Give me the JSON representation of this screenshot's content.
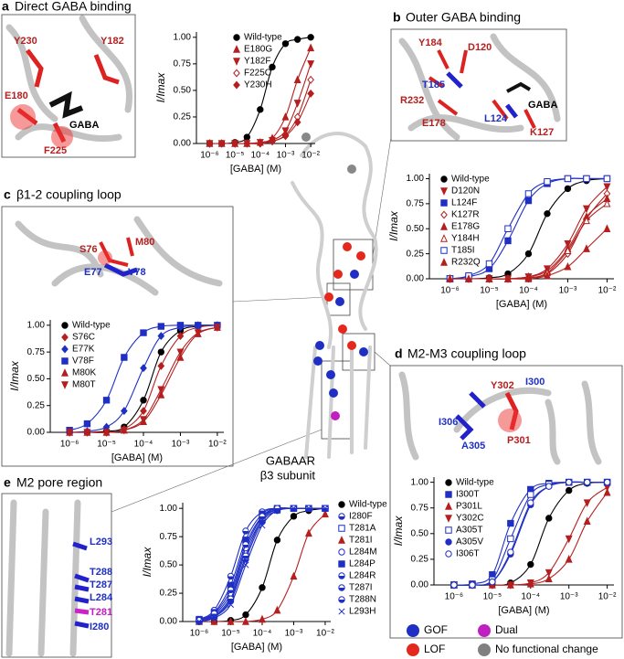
{
  "panels": [
    {
      "letter": "a",
      "title": "Direct GABA binding",
      "residues": [
        "Y230",
        "Y182",
        "E180",
        "GABA",
        "F225"
      ]
    },
    {
      "letter": "b",
      "title": "Outer GABA binding",
      "residues": [
        "Y184",
        "D120",
        "T185",
        "R232",
        "GABA",
        "L124",
        "E178",
        "K127"
      ]
    },
    {
      "letter": "c",
      "title": "β1-2 coupling loop",
      "residues": [
        "S76",
        "M80",
        "E77",
        "V78"
      ]
    },
    {
      "letter": "d",
      "title": "M2-M3 coupling loop",
      "residues": [
        "Y302",
        "I300",
        "I306",
        "A305",
        "P301"
      ]
    },
    {
      "letter": "e",
      "title": "M2 pore region",
      "residues": [
        "L293",
        "T288",
        "T287",
        "L284",
        "T281",
        "I280"
      ]
    }
  ],
  "structure": {
    "name": "GABAAR",
    "subtitle": "β3 subunit"
  },
  "legend": [
    {
      "label": "GOF",
      "color": "#1f2fc4"
    },
    {
      "label": "Dual",
      "color": "#c020c0"
    },
    {
      "label": "LOF",
      "color": "#e5281e"
    },
    {
      "label": "No functional change",
      "color": "#808080"
    }
  ],
  "chart_data": [
    {
      "type": "line",
      "x_label": "[GABA] (M)",
      "y_label": "I/Imax",
      "log_x": true,
      "legend": "upper left",
      "x": [
        1e-06,
        3e-06,
        1e-05,
        3e-05,
        0.0001,
        0.0003,
        0.001,
        0.003,
        0.01
      ],
      "xlim": [
        3e-07,
        0.015
      ],
      "xticks": [
        {
          "value": 1e-06,
          "label": "10⁻⁶"
        },
        {
          "value": 1e-05,
          "label": "10⁻⁵"
        },
        {
          "value": 0.0001,
          "label": "10⁻⁴"
        },
        {
          "value": 0.001,
          "label": "10⁻³"
        },
        {
          "value": 0.01,
          "label": "10⁻²"
        }
      ],
      "ylim": [
        0,
        1.05
      ],
      "yticks": [
        {
          "value": 0,
          "label": "0.00"
        },
        0.25,
        {
          "value": 0.5,
          "label": "0.50"
        },
        0.75,
        {
          "value": 1,
          "label": "1.00"
        }
      ],
      "series": [
        {
          "name": "Wild-type",
          "color": "#000000",
          "marker": "circle",
          "values": [
            0,
            0,
            0.01,
            0.06,
            0.32,
            0.72,
            0.94,
            0.98,
            1.0
          ]
        },
        {
          "name": "E180G",
          "color": "#b51f1f",
          "marker": "triangle",
          "values": [
            0,
            0,
            0,
            0,
            0.01,
            0.05,
            0.25,
            0.6,
            0.9
          ]
        },
        {
          "name": "Y182F",
          "color": "#b51f1f",
          "marker": "triangle-down",
          "values": [
            0,
            0,
            0,
            0,
            0.01,
            0.03,
            0.12,
            0.38,
            0.75
          ]
        },
        {
          "name": "F225C",
          "color": "#b51f1f",
          "marker": "diamond-open",
          "values": [
            0,
            0,
            0,
            0,
            0,
            0.02,
            0.08,
            0.25,
            0.6
          ]
        },
        {
          "name": "Y230H",
          "color": "#b51f1f",
          "marker": "diamond",
          "values": [
            0,
            0,
            0,
            0,
            0,
            0.02,
            0.07,
            0.2,
            0.47
          ]
        }
      ]
    },
    {
      "type": "line",
      "x_label": "[GABA] (M)",
      "y_label": "I/Imax",
      "log_x": true,
      "legend": "upper left",
      "x": [
        1e-06,
        3e-06,
        1e-05,
        3e-05,
        0.0001,
        0.0003,
        0.001,
        0.003,
        0.01
      ],
      "xlim": [
        3e-07,
        0.015
      ],
      "xticks": [
        {
          "value": 1e-06,
          "label": "10⁻⁶"
        },
        {
          "value": 1e-05,
          "label": "10⁻⁵"
        },
        {
          "value": 0.0001,
          "label": "10⁻⁴"
        },
        {
          "value": 0.001,
          "label": "10⁻³"
        },
        {
          "value": 0.01,
          "label": "10⁻²"
        }
      ],
      "ylim": [
        0,
        1.05
      ],
      "yticks": [
        {
          "value": 0,
          "label": "0.00"
        },
        0.25,
        {
          "value": 0.5,
          "label": "0.50"
        },
        0.75,
        {
          "value": 1,
          "label": "1.00"
        }
      ],
      "series": [
        {
          "name": "Wild-type",
          "color": "#000000",
          "marker": "circle",
          "values": [
            0,
            0,
            0.01,
            0.05,
            0.25,
            0.65,
            0.9,
            0.98,
            1.0
          ]
        },
        {
          "name": "D120N",
          "color": "#b51f1f",
          "marker": "triangle-down",
          "values": [
            0,
            0,
            0,
            0,
            0.02,
            0.1,
            0.35,
            0.7,
            0.92
          ]
        },
        {
          "name": "L124F",
          "color": "#1f2fc4",
          "marker": "square",
          "values": [
            0,
            0.02,
            0.1,
            0.38,
            0.78,
            0.95,
            1.0,
            1.0,
            1.0
          ]
        },
        {
          "name": "K127R",
          "color": "#b51f1f",
          "marker": "diamond-open",
          "values": [
            0,
            0,
            0,
            0,
            0.01,
            0.05,
            0.25,
            0.6,
            0.85
          ]
        },
        {
          "name": "E178G",
          "color": "#b51f1f",
          "marker": "triangle",
          "values": [
            0,
            0,
            0,
            0,
            0.02,
            0.08,
            0.3,
            0.62,
            0.8
          ]
        },
        {
          "name": "Y184H",
          "color": "#b51f1f",
          "marker": "triangle-open",
          "values": [
            0,
            0,
            0,
            0,
            0.01,
            0.06,
            0.28,
            0.58,
            0.75
          ]
        },
        {
          "name": "T185I",
          "color": "#1f2fc4",
          "marker": "square-open",
          "values": [
            0,
            0.03,
            0.15,
            0.5,
            0.85,
            0.97,
            1.0,
            1.0,
            1.0
          ]
        },
        {
          "name": "R232Q",
          "color": "#b51f1f",
          "marker": "triangle",
          "values": [
            0,
            0,
            0,
            0,
            0,
            0.03,
            0.12,
            0.3,
            0.5
          ]
        }
      ]
    },
    {
      "type": "line",
      "x_label": "[GABA] (M)",
      "y_label": "I/Imax",
      "log_x": true,
      "legend": "upper left",
      "x": [
        1e-06,
        3e-06,
        1e-05,
        3e-05,
        0.0001,
        0.0003,
        0.001,
        0.003,
        0.01
      ],
      "xlim": [
        3e-07,
        0.015
      ],
      "xticks": [
        {
          "value": 1e-06,
          "label": "10⁻⁶"
        },
        {
          "value": 1e-05,
          "label": "10⁻⁵"
        },
        {
          "value": 0.0001,
          "label": "10⁻⁴"
        },
        {
          "value": 0.001,
          "label": "10⁻³"
        },
        {
          "value": 0.01,
          "label": "10⁻²"
        }
      ],
      "ylim": [
        0,
        1.05
      ],
      "yticks": [
        {
          "value": 0,
          "label": "0.00"
        },
        0.25,
        {
          "value": 0.5,
          "label": "0.50"
        },
        0.75,
        {
          "value": 1,
          "label": "1.00"
        }
      ],
      "series": [
        {
          "name": "Wild-type",
          "color": "#000000",
          "marker": "circle",
          "values": [
            0,
            0,
            0.01,
            0.05,
            0.3,
            0.75,
            0.95,
            0.99,
            1.0
          ]
        },
        {
          "name": "S76C",
          "color": "#b51f1f",
          "marker": "diamond",
          "values": [
            0,
            0,
            0,
            0.03,
            0.2,
            0.62,
            0.9,
            0.98,
            1.0
          ]
        },
        {
          "name": "E77K",
          "color": "#1f2fc4",
          "marker": "diamond",
          "values": [
            0,
            0.01,
            0.05,
            0.2,
            0.6,
            0.9,
            0.98,
            1.0,
            1.0
          ]
        },
        {
          "name": "V78F",
          "color": "#1f2fc4",
          "marker": "square",
          "values": [
            0.02,
            0.08,
            0.3,
            0.7,
            0.93,
            0.99,
            1.0,
            1.0,
            1.0
          ]
        },
        {
          "name": "M80K",
          "color": "#b51f1f",
          "marker": "triangle",
          "values": [
            0,
            0,
            0,
            0.02,
            0.1,
            0.35,
            0.7,
            0.92,
            0.98
          ]
        },
        {
          "name": "M80T",
          "color": "#b51f1f",
          "marker": "triangle-down",
          "values": [
            0,
            0,
            0,
            0.02,
            0.12,
            0.4,
            0.75,
            0.93,
            0.98
          ]
        }
      ]
    },
    {
      "type": "line",
      "x_label": "[GABA] (M)",
      "y_label": "I/Imax",
      "log_x": true,
      "legend": "upper left",
      "x": [
        1e-06,
        3e-06,
        1e-05,
        3e-05,
        0.0001,
        0.0003,
        0.001,
        0.003,
        0.01
      ],
      "xlim": [
        3e-07,
        0.015
      ],
      "xticks": [
        {
          "value": 1e-06,
          "label": "10⁻⁶"
        },
        {
          "value": 1e-05,
          "label": "10⁻⁵"
        },
        {
          "value": 0.0001,
          "label": "10⁻⁴"
        },
        {
          "value": 0.001,
          "label": "10⁻³"
        },
        {
          "value": 0.01,
          "label": "10⁻²"
        }
      ],
      "ylim": [
        0,
        1.05
      ],
      "yticks": [
        {
          "value": 0,
          "label": "0.00"
        },
        0.25,
        {
          "value": 0.5,
          "label": "0.50"
        },
        0.75,
        {
          "value": 1,
          "label": "1.00"
        }
      ],
      "series": [
        {
          "name": "Wild-type",
          "color": "#000000",
          "marker": "circle",
          "values": [
            0,
            0,
            0,
            0.02,
            0.2,
            0.65,
            0.92,
            0.99,
            1.0
          ]
        },
        {
          "name": "I300T",
          "color": "#1f2fc4",
          "marker": "square",
          "values": [
            0,
            0.01,
            0.1,
            0.6,
            0.93,
            0.99,
            1.0,
            1.0,
            1.0
          ]
        },
        {
          "name": "P301L",
          "color": "#b51f1f",
          "marker": "triangle",
          "values": [
            0,
            0,
            0,
            0,
            0.01,
            0.06,
            0.25,
            0.62,
            0.9
          ]
        },
        {
          "name": "Y302C",
          "color": "#b51f1f",
          "marker": "triangle-down",
          "values": [
            0,
            0,
            0,
            0,
            0.02,
            0.12,
            0.45,
            0.8,
            0.95
          ]
        },
        {
          "name": "A305T",
          "color": "#1f2fc4",
          "marker": "square-open",
          "values": [
            0,
            0,
            0.05,
            0.45,
            0.88,
            0.98,
            1.0,
            1.0,
            1.0
          ]
        },
        {
          "name": "A305V",
          "color": "#1f2fc4",
          "marker": "circle",
          "values": [
            0,
            0,
            0.03,
            0.3,
            0.78,
            0.96,
            1.0,
            1.0,
            1.0
          ]
        },
        {
          "name": "I306T",
          "color": "#1f2fc4",
          "marker": "circle-open",
          "values": [
            0,
            0,
            0.03,
            0.32,
            0.8,
            0.96,
            1.0,
            1.0,
            1.0
          ]
        }
      ]
    },
    {
      "type": "line",
      "x_label": "[GABA] (M)",
      "y_label": "I/Imax",
      "log_x": true,
      "legend": "right",
      "x": [
        1e-06,
        3e-06,
        1e-05,
        3e-05,
        0.0001,
        0.0003,
        0.001,
        0.003,
        0.01
      ],
      "xlim": [
        3e-07,
        0.015
      ],
      "xticks": [
        {
          "value": 1e-06,
          "label": "10⁻⁶"
        },
        {
          "value": 1e-05,
          "label": "10⁻⁵"
        },
        {
          "value": 0.0001,
          "label": "10⁻⁴"
        },
        {
          "value": 0.001,
          "label": "10⁻³"
        },
        {
          "value": 0.01,
          "label": "10⁻²"
        }
      ],
      "ylim": [
        0,
        1.05
      ],
      "yticks": [
        {
          "value": 0,
          "label": "0.00"
        },
        0.25,
        {
          "value": 0.5,
          "label": "0.50"
        },
        0.75,
        {
          "value": 1,
          "label": "1.00"
        }
      ],
      "series": [
        {
          "name": "Wild-type",
          "color": "#000000",
          "marker": "circle",
          "values": [
            0,
            0,
            0.01,
            0.06,
            0.3,
            0.72,
            0.93,
            0.98,
            1.0
          ]
        },
        {
          "name": "I280F",
          "color": "#1f2fc4",
          "marker": "circle-half",
          "values": [
            0.02,
            0.1,
            0.4,
            0.8,
            0.97,
            1.0,
            1.0,
            1.0,
            1.0
          ]
        },
        {
          "name": "T281A",
          "color": "#1f2fc4",
          "marker": "square-open",
          "values": [
            0.01,
            0.05,
            0.22,
            0.62,
            0.9,
            0.99,
            1.0,
            1.0,
            1.0
          ]
        },
        {
          "name": "T281I",
          "color": "#b51f1f",
          "marker": "triangle",
          "values": [
            0,
            0,
            0,
            0,
            0.02,
            0.1,
            0.4,
            0.78,
            0.95
          ]
        },
        {
          "name": "L284M",
          "color": "#1f2fc4",
          "marker": "circle-open",
          "values": [
            0.01,
            0.06,
            0.25,
            0.65,
            0.92,
            0.99,
            1.0,
            1.0,
            1.0
          ]
        },
        {
          "name": "L284P",
          "color": "#1f2fc4",
          "marker": "square",
          "values": [
            0.02,
            0.08,
            0.32,
            0.72,
            0.95,
            1.0,
            1.0,
            1.0,
            1.0
          ]
        },
        {
          "name": "L284R",
          "color": "#1f2fc4",
          "marker": "circle-half",
          "values": [
            0,
            0.04,
            0.18,
            0.55,
            0.88,
            0.98,
            1.0,
            1.0,
            1.0
          ]
        },
        {
          "name": "T287I",
          "color": "#1f2fc4",
          "marker": "circle-half",
          "values": [
            0,
            0.04,
            0.2,
            0.58,
            0.9,
            0.99,
            1.0,
            1.0,
            1.0
          ]
        },
        {
          "name": "T288N",
          "color": "#1f2fc4",
          "marker": "circle-half",
          "values": [
            0.01,
            0.07,
            0.28,
            0.68,
            0.93,
            1.0,
            1.0,
            1.0,
            1.0
          ]
        },
        {
          "name": "L293H",
          "color": "#1f2fc4",
          "marker": "x",
          "values": [
            0,
            0.03,
            0.15,
            0.5,
            0.85,
            0.98,
            1.0,
            1.0,
            1.0
          ]
        }
      ]
    }
  ]
}
